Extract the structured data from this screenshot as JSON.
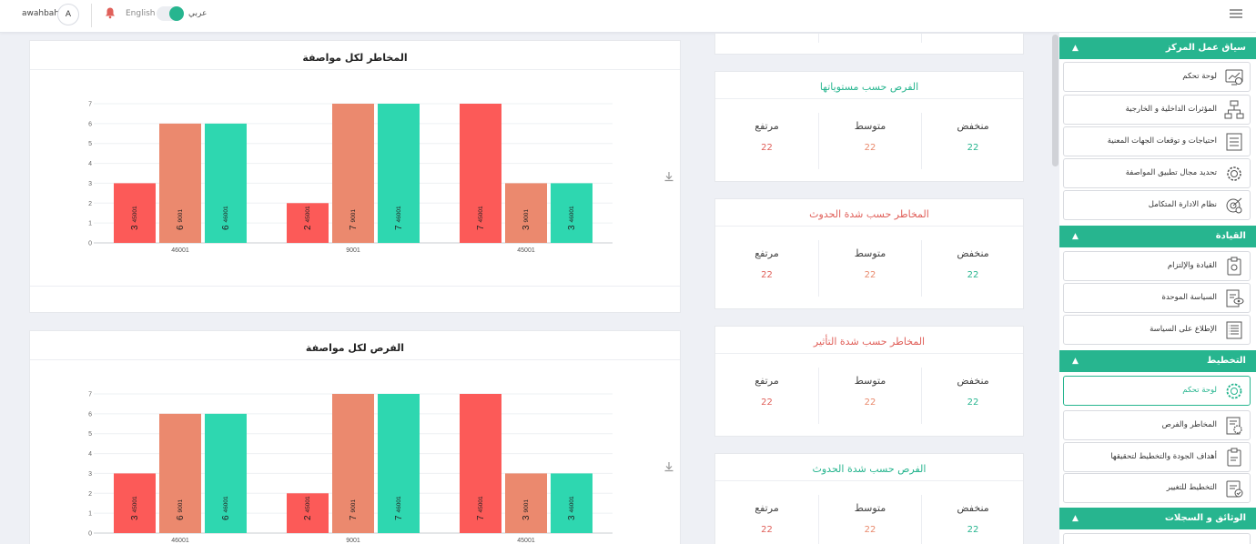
{
  "topbar": {
    "user_name": "awahbah",
    "avatar_letter": "A",
    "lang_english": "English",
    "lang_arabic": "عربي"
  },
  "sidebar": {
    "sections": [
      {
        "title": "سياق عمل المركز",
        "items": [
          {
            "label": "لوحة تحكم",
            "icon": "dashboard-icon"
          },
          {
            "label": "المؤثرات الداخلية و الخارجية",
            "icon": "org-chart-icon"
          },
          {
            "label": "احتياجات و توقعات الجهات المعنية",
            "icon": "checklist-icon"
          },
          {
            "label": "تحديد مجال تطبيق المواصفة",
            "icon": "gear-icon"
          },
          {
            "label": "نظام الادارة المتكامل",
            "icon": "target-icon"
          }
        ]
      },
      {
        "title": "القيادة",
        "items": [
          {
            "label": "القيادة والإلتزام",
            "icon": "clipboard-icon"
          },
          {
            "label": "السياسة الموحدة",
            "icon": "document-eye-icon"
          },
          {
            "label": "الإطلاع على السياسة",
            "icon": "list-document-icon"
          }
        ]
      },
      {
        "title": "التخطيط",
        "items": [
          {
            "label": "لوحة تحكم",
            "icon": "gear-icon",
            "active": true
          },
          {
            "label": "المخاطر والفرص",
            "icon": "document-gear-icon"
          },
          {
            "label": "أهداف الجودة والتخطيط لتحقيقها",
            "icon": "clipboard-icon"
          },
          {
            "label": "التخطيط للتغيير",
            "icon": "clipboard-check-icon"
          }
        ]
      },
      {
        "title": "الوثائق و السجلات",
        "items": []
      }
    ]
  },
  "stat_cards": [
    {
      "title": "الفرص حسب مستوياتها",
      "title_color": "#27b58f",
      "labels": [
        "منخفض",
        "متوسط",
        "مرتفع"
      ],
      "values": [
        "22",
        "22",
        "22"
      ],
      "value_colors": [
        "#27b58f",
        "#e98a6d",
        "#e0605a"
      ]
    },
    {
      "title": "المخاطر حسب شدة الحدوث",
      "title_color": "#e0605a",
      "labels": [
        "منخفض",
        "متوسط",
        "مرتفع"
      ],
      "values": [
        "22",
        "22",
        "22"
      ],
      "value_colors": [
        "#27b58f",
        "#e98a6d",
        "#e0605a"
      ]
    },
    {
      "title": "المخاطر حسب شدة التأثير",
      "title_color": "#e0605a",
      "labels": [
        "منخفض",
        "متوسط",
        "مرتفع"
      ],
      "values": [
        "22",
        "22",
        "22"
      ],
      "value_colors": [
        "#27b58f",
        "#e98a6d",
        "#e0605a"
      ]
    },
    {
      "title": "الفرص حسب شدة الحدوث",
      "title_color": "#27b58f",
      "labels": [
        "منخفض",
        "متوسط",
        "مرتفع"
      ],
      "values": [
        "22",
        "22",
        "22"
      ],
      "value_colors": [
        "#27b58f",
        "#e98a6d",
        "#e0605a"
      ]
    }
  ],
  "chart_data": [
    {
      "type": "bar",
      "title": "المخاطر لكل مواصفة",
      "categories": [
        "46001",
        "9001",
        "45001"
      ],
      "ylim": [
        0,
        7
      ],
      "yticks": [
        "0",
        "1",
        "2",
        "3",
        "4",
        "5",
        "6",
        "7"
      ],
      "grid": true,
      "series": [
        {
          "values": [
            3,
            2,
            7
          ],
          "color": "#fc5a58",
          "bar_labels": [
            "45001",
            "45001",
            "45001"
          ]
        },
        {
          "values": [
            6,
            7,
            3
          ],
          "color": "#eb896e",
          "bar_labels": [
            "9001",
            "9001",
            "9001"
          ]
        },
        {
          "values": [
            6,
            7,
            3
          ],
          "color": "#2ed7b0",
          "bar_labels": [
            "46001",
            "46001",
            "46001"
          ]
        }
      ]
    },
    {
      "type": "bar",
      "title": "الفرص لكل مواصفة",
      "categories": [
        "46001",
        "9001",
        "45001"
      ],
      "ylim": [
        0,
        7
      ],
      "yticks": [
        "0",
        "1",
        "2",
        "3",
        "4",
        "5",
        "6",
        "7"
      ],
      "grid": true,
      "series": [
        {
          "values": [
            3,
            2,
            7
          ],
          "color": "#fc5a58",
          "bar_labels": [
            "45001",
            "45001",
            "45001"
          ]
        },
        {
          "values": [
            6,
            7,
            3
          ],
          "color": "#eb896e",
          "bar_labels": [
            "9001",
            "9001",
            "9001"
          ]
        },
        {
          "values": [
            6,
            7,
            3
          ],
          "color": "#2ed7b0",
          "bar_labels": [
            "46001",
            "46001",
            "46001"
          ]
        }
      ]
    }
  ]
}
